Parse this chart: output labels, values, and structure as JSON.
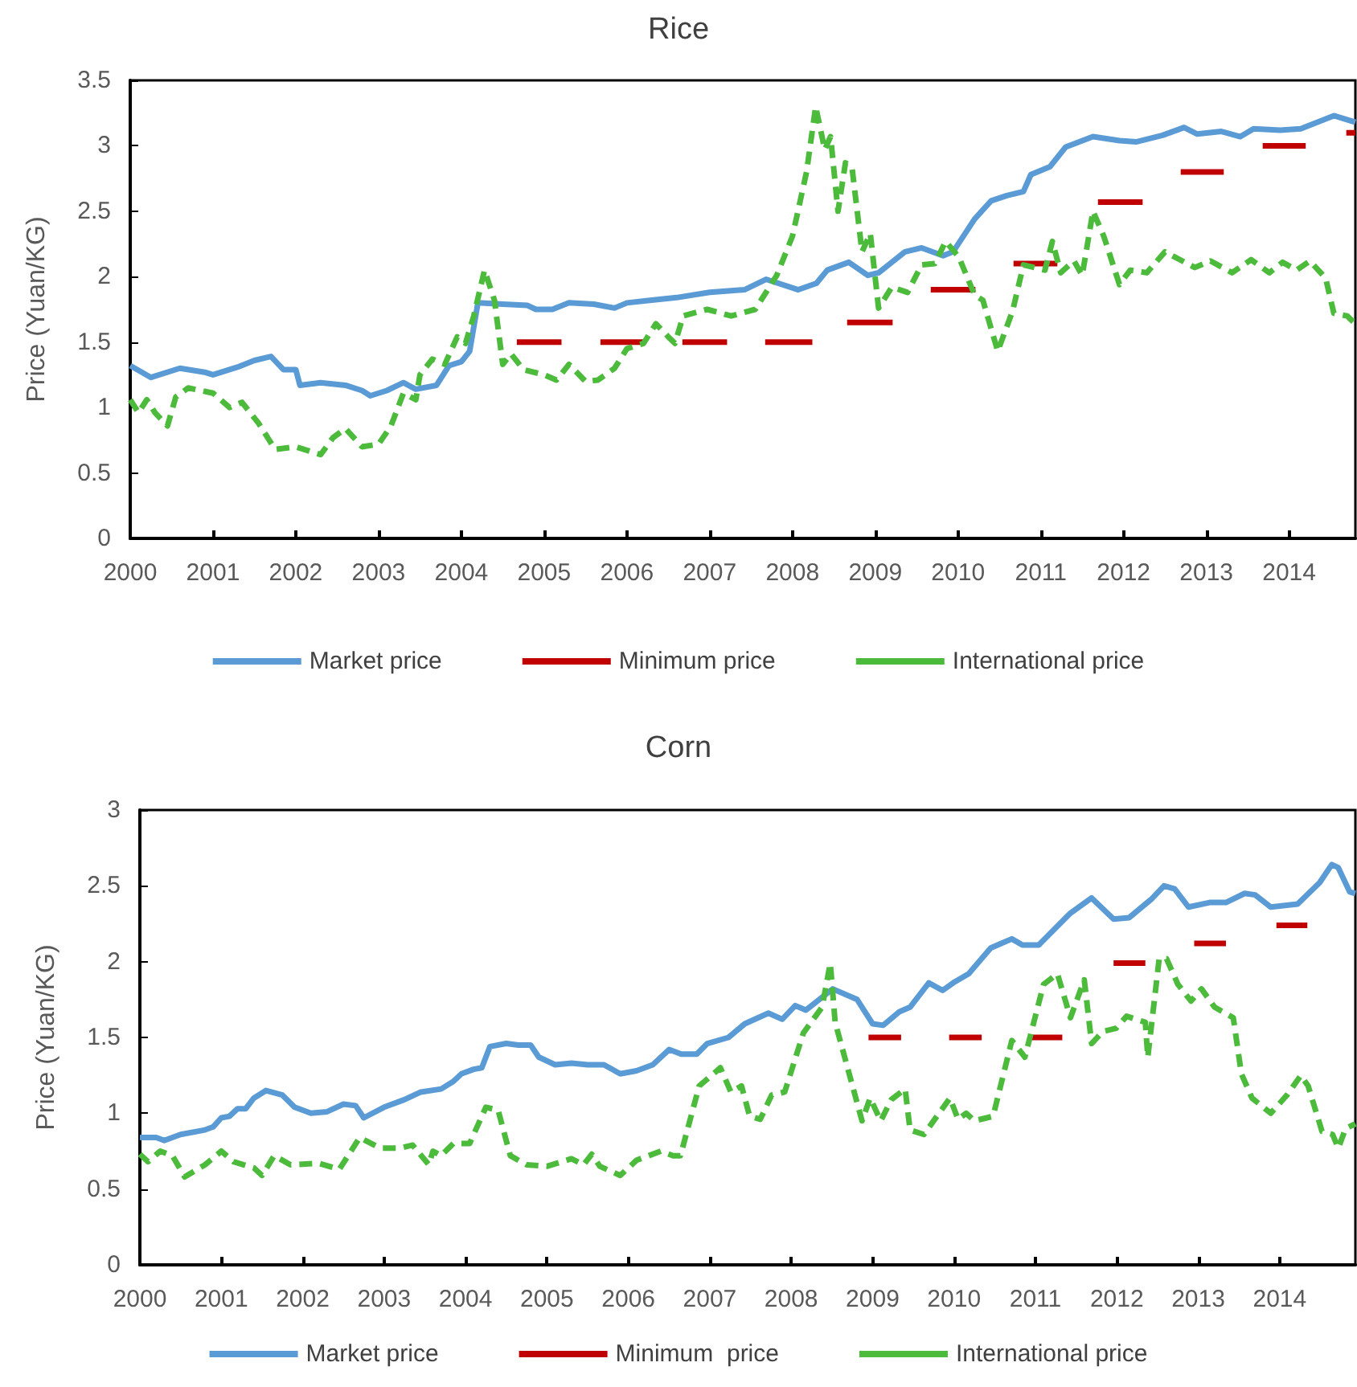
{
  "chart_data": [
    {
      "type": "line",
      "title": "Rice",
      "ylabel": "Price (Yuan/KG)",
      "xlim": [
        2000,
        2014.8
      ],
      "xticks": [
        2000,
        2001,
        2002,
        2003,
        2004,
        2005,
        2006,
        2007,
        2008,
        2009,
        2010,
        2011,
        2012,
        2013,
        2014
      ],
      "ylim": [
        0,
        3.5
      ],
      "yticks": [
        0,
        0.5,
        1,
        1.5,
        2,
        2.5,
        3,
        3.5
      ],
      "grid": false,
      "legend": "bottom",
      "marker": "none",
      "series": [
        {
          "name": "Market price",
          "color": "#5b9bd5",
          "line_style": "solid",
          "x": [
            2000.0,
            2000.25,
            2000.6,
            2000.9,
            2001.0,
            2001.3,
            2001.5,
            2001.7,
            2001.85,
            2002.0,
            2002.05,
            2002.3,
            2002.6,
            2002.8,
            2002.9,
            2003.1,
            2003.3,
            2003.45,
            2003.7,
            2003.85,
            2004.0,
            2004.1,
            2004.2,
            2004.5,
            2004.8,
            2004.9,
            2005.1,
            2005.3,
            2005.6,
            2005.85,
            2006.0,
            2006.3,
            2006.6,
            2007.0,
            2007.42,
            2007.68,
            2008.07,
            2008.29,
            2008.42,
            2008.68,
            2008.91,
            2009.04,
            2009.36,
            2009.56,
            2009.82,
            2009.94,
            2010.2,
            2010.4,
            2010.59,
            2010.79,
            2010.88,
            2011.11,
            2011.3,
            2011.63,
            2011.95,
            2012.15,
            2012.47,
            2012.73,
            2012.89,
            2013.18,
            2013.41,
            2013.57,
            2013.89,
            2014.14,
            2014.54,
            2014.8
          ],
          "values": [
            1.32,
            1.23,
            1.3,
            1.27,
            1.25,
            1.31,
            1.36,
            1.39,
            1.29,
            1.29,
            1.17,
            1.19,
            1.17,
            1.13,
            1.09,
            1.13,
            1.19,
            1.14,
            1.17,
            1.32,
            1.35,
            1.43,
            1.8,
            1.79,
            1.78,
            1.75,
            1.75,
            1.8,
            1.79,
            1.76,
            1.8,
            1.82,
            1.84,
            1.88,
            1.9,
            1.98,
            1.9,
            1.95,
            2.05,
            2.11,
            2.01,
            2.03,
            2.19,
            2.22,
            2.16,
            2.19,
            2.44,
            2.58,
            2.62,
            2.65,
            2.78,
            2.84,
            2.99,
            3.07,
            3.04,
            3.03,
            3.08,
            3.14,
            3.09,
            3.11,
            3.07,
            3.13,
            3.12,
            3.13,
            3.23,
            3.18
          ]
        },
        {
          "name": "Minimum price",
          "color": "#c00000",
          "line_style": "solid",
          "x": [
            2004.67,
            2005.21,
            2005.45,
            2005.68,
            2006.21,
            2006.45,
            2006.67,
            2007.21,
            2007.45,
            2007.67,
            2008.24,
            2008.45,
            2008.66,
            2009.21,
            2009.45,
            2009.67,
            2010.21,
            2010.45,
            2010.67,
            2011.2,
            2011.45,
            2011.69,
            2012.23,
            2012.45,
            2012.69,
            2013.21,
            2013.45,
            2013.68,
            2014.2,
            2014.45,
            2014.69,
            2014.8
          ],
          "values": [
            1.5,
            1.5,
            null,
            1.5,
            1.5,
            null,
            1.5,
            1.5,
            null,
            1.5,
            1.5,
            null,
            1.65,
            1.65,
            null,
            1.9,
            1.9,
            null,
            2.1,
            2.1,
            null,
            2.57,
            2.57,
            null,
            2.8,
            2.8,
            null,
            3.0,
            3.0,
            null,
            3.1,
            3.1
          ]
        },
        {
          "name": "International price",
          "color": "#4cbb3c",
          "line_style": "dashed",
          "x": [
            2000.0,
            2000.1,
            2000.2,
            2000.3,
            2000.45,
            2000.55,
            2000.7,
            2001.0,
            2001.2,
            2001.35,
            2001.55,
            2001.75,
            2002.0,
            2002.3,
            2002.45,
            2002.6,
            2002.8,
            2003.0,
            2003.15,
            2003.3,
            2003.45,
            2003.5,
            2003.65,
            2003.8,
            2003.95,
            2004.05,
            2004.15,
            2004.28,
            2004.4,
            2004.5,
            2004.6,
            2004.75,
            2005.0,
            2005.15,
            2005.3,
            2005.5,
            2005.65,
            2005.85,
            2006.0,
            2006.2,
            2006.35,
            2006.5,
            2006.58,
            2006.68,
            2006.97,
            2007.26,
            2007.55,
            2007.81,
            2008.0,
            2008.17,
            2008.28,
            2008.39,
            2008.46,
            2008.55,
            2008.64,
            2008.72,
            2008.84,
            2008.94,
            2009.04,
            2009.2,
            2009.39,
            2009.56,
            2009.72,
            2009.85,
            2010.01,
            2010.2,
            2010.3,
            2010.48,
            2010.66,
            2010.79,
            2011.05,
            2011.14,
            2011.24,
            2011.4,
            2011.5,
            2011.63,
            2011.76,
            2011.95,
            2012.08,
            2012.28,
            2012.5,
            2012.86,
            2013.05,
            2013.31,
            2013.54,
            2013.76,
            2013.92,
            2014.09,
            2014.25,
            2014.44,
            2014.54,
            2014.7,
            2014.8
          ],
          "values": [
            1.06,
            0.96,
            1.06,
            0.96,
            0.86,
            1.08,
            1.15,
            1.11,
            1.0,
            1.04,
            0.88,
            0.68,
            0.7,
            0.64,
            0.77,
            0.84,
            0.7,
            0.72,
            0.86,
            1.11,
            1.06,
            1.25,
            1.37,
            1.33,
            1.54,
            1.49,
            1.7,
            2.05,
            1.82,
            1.33,
            1.41,
            1.29,
            1.25,
            1.21,
            1.33,
            1.2,
            1.21,
            1.3,
            1.45,
            1.49,
            1.64,
            1.54,
            1.49,
            1.7,
            1.75,
            1.7,
            1.75,
            2.01,
            2.31,
            2.8,
            3.3,
            2.97,
            3.07,
            2.5,
            2.87,
            2.83,
            2.19,
            2.33,
            1.76,
            1.92,
            1.88,
            2.09,
            2.1,
            2.27,
            2.15,
            1.86,
            1.82,
            1.43,
            1.74,
            2.09,
            2.05,
            2.27,
            2.03,
            2.12,
            2.01,
            2.5,
            2.31,
            1.94,
            2.05,
            2.03,
            2.19,
            2.07,
            2.12,
            2.03,
            2.13,
            2.03,
            2.11,
            2.05,
            2.12,
            1.99,
            1.72,
            1.7,
            1.64
          ]
        }
      ]
    },
    {
      "type": "line",
      "title": "Corn",
      "ylabel": "Price (Yuan/KG)",
      "xlim": [
        2000,
        2014.93
      ],
      "xticks": [
        2000,
        2001,
        2002,
        2003,
        2004,
        2005,
        2006,
        2007,
        2008,
        2009,
        2010,
        2011,
        2012,
        2013,
        2014
      ],
      "ylim": [
        0,
        3
      ],
      "yticks": [
        0,
        0.5,
        1,
        1.5,
        2,
        2.5,
        3
      ],
      "grid": false,
      "legend": "bottom",
      "marker": "none",
      "series": [
        {
          "name": "Market price",
          "color": "#5b9bd5",
          "line_style": "solid",
          "x": [
            2000.0,
            2000.2,
            2000.3,
            2000.5,
            2000.8,
            2000.9,
            2001.0,
            2001.1,
            2001.2,
            2001.3,
            2001.4,
            2001.55,
            2001.75,
            2001.9,
            2002.1,
            2002.3,
            2002.5,
            2002.65,
            2002.75,
            2003.0,
            2003.25,
            2003.45,
            2003.7,
            2003.85,
            2003.95,
            2004.1,
            2004.2,
            2004.3,
            2004.5,
            2004.65,
            2004.8,
            2004.9,
            2005.1,
            2005.3,
            2005.5,
            2005.7,
            2005.9,
            2006.1,
            2006.3,
            2006.5,
            2006.65,
            2006.84,
            2006.97,
            2007.23,
            2007.43,
            2007.72,
            2007.89,
            2008.05,
            2008.18,
            2008.51,
            2008.81,
            2009.0,
            2009.13,
            2009.33,
            2009.46,
            2009.69,
            2009.86,
            2009.99,
            2010.18,
            2010.45,
            2010.58,
            2010.71,
            2010.84,
            2011.04,
            2011.43,
            2011.69,
            2011.96,
            2012.15,
            2012.42,
            2012.58,
            2012.71,
            2012.88,
            2013.14,
            2013.34,
            2013.57,
            2013.7,
            2013.89,
            2014.22,
            2014.49,
            2014.64,
            2014.72,
            2014.86,
            2014.93
          ],
          "values": [
            0.84,
            0.84,
            0.82,
            0.86,
            0.89,
            0.91,
            0.97,
            0.98,
            1.03,
            1.03,
            1.1,
            1.15,
            1.12,
            1.04,
            1.0,
            1.01,
            1.06,
            1.05,
            0.97,
            1.04,
            1.09,
            1.14,
            1.16,
            1.21,
            1.26,
            1.29,
            1.3,
            1.44,
            1.46,
            1.45,
            1.45,
            1.37,
            1.32,
            1.33,
            1.32,
            1.32,
            1.26,
            1.28,
            1.32,
            1.42,
            1.39,
            1.39,
            1.46,
            1.5,
            1.59,
            1.66,
            1.62,
            1.71,
            1.68,
            1.82,
            1.75,
            1.59,
            1.58,
            1.67,
            1.7,
            1.86,
            1.81,
            1.86,
            1.92,
            2.09,
            2.12,
            2.15,
            2.11,
            2.11,
            2.32,
            2.42,
            2.28,
            2.29,
            2.41,
            2.5,
            2.48,
            2.36,
            2.39,
            2.39,
            2.45,
            2.44,
            2.36,
            2.38,
            2.52,
            2.64,
            2.62,
            2.46,
            2.45
          ]
        },
        {
          "name": "Minimum  price",
          "color": "#c00000",
          "line_style": "solid",
          "x": [
            2008.95,
            2009.35,
            2009.6,
            2009.94,
            2010.34,
            2010.6,
            2010.95,
            2011.33,
            2011.6,
            2011.96,
            2012.35,
            2012.6,
            2012.95,
            2013.34,
            2013.6,
            2013.96,
            2014.34
          ],
          "values": [
            1.5,
            1.5,
            null,
            1.5,
            1.5,
            null,
            1.5,
            1.5,
            null,
            1.99,
            1.99,
            null,
            2.12,
            2.12,
            null,
            2.24,
            2.24
          ]
        },
        {
          "name": "International price",
          "color": "#4cbb3c",
          "line_style": "dashed",
          "x": [
            2000.0,
            2000.1,
            2000.25,
            2000.4,
            2000.55,
            2000.8,
            2001.0,
            2001.15,
            2001.4,
            2001.5,
            2001.65,
            2001.85,
            2002.2,
            2002.45,
            2002.7,
            2002.95,
            2003.2,
            2003.35,
            2003.55,
            2003.6,
            2003.7,
            2003.85,
            2004.05,
            2004.25,
            2004.4,
            2004.55,
            2004.75,
            2005.0,
            2005.3,
            2005.45,
            2005.55,
            2005.65,
            2005.9,
            2006.1,
            2006.4,
            2006.55,
            2006.64,
            2006.87,
            2007.13,
            2007.26,
            2007.39,
            2007.49,
            2007.62,
            2007.76,
            2007.92,
            2008.15,
            2008.38,
            2008.48,
            2008.54,
            2008.87,
            2008.97,
            2009.1,
            2009.23,
            2009.4,
            2009.46,
            2009.63,
            2009.95,
            2010.05,
            2010.15,
            2010.25,
            2010.48,
            2010.71,
            2010.87,
            2011.1,
            2011.27,
            2011.43,
            2011.6,
            2011.69,
            2011.83,
            2011.99,
            2012.12,
            2012.35,
            2012.38,
            2012.52,
            2012.61,
            2012.75,
            2012.91,
            2013.04,
            2013.2,
            2013.43,
            2013.53,
            2013.66,
            2013.89,
            2014.09,
            2014.26,
            2014.35,
            2014.52,
            2014.65,
            2014.72,
            2014.81,
            2014.93
          ],
          "values": [
            0.73,
            0.68,
            0.75,
            0.72,
            0.58,
            0.66,
            0.75,
            0.68,
            0.64,
            0.59,
            0.72,
            0.66,
            0.67,
            0.63,
            0.84,
            0.77,
            0.77,
            0.79,
            0.66,
            0.75,
            0.72,
            0.8,
            0.8,
            1.04,
            1.02,
            0.72,
            0.66,
            0.65,
            0.7,
            0.66,
            0.73,
            0.65,
            0.59,
            0.69,
            0.75,
            0.72,
            0.72,
            1.18,
            1.3,
            1.14,
            1.18,
            0.98,
            0.96,
            1.12,
            1.14,
            1.53,
            1.7,
            1.99,
            1.6,
            0.95,
            1.1,
            0.95,
            1.09,
            1.16,
            0.89,
            0.86,
            1.1,
            0.96,
            1.0,
            0.95,
            0.98,
            1.48,
            1.37,
            1.85,
            1.92,
            1.63,
            1.88,
            1.46,
            1.54,
            1.56,
            1.64,
            1.6,
            1.37,
            2.02,
            2.02,
            1.85,
            1.74,
            1.82,
            1.7,
            1.63,
            1.26,
            1.1,
            1.0,
            1.12,
            1.25,
            1.18,
            0.88,
            0.86,
            0.77,
            0.9,
            0.93
          ]
        }
      ]
    }
  ]
}
